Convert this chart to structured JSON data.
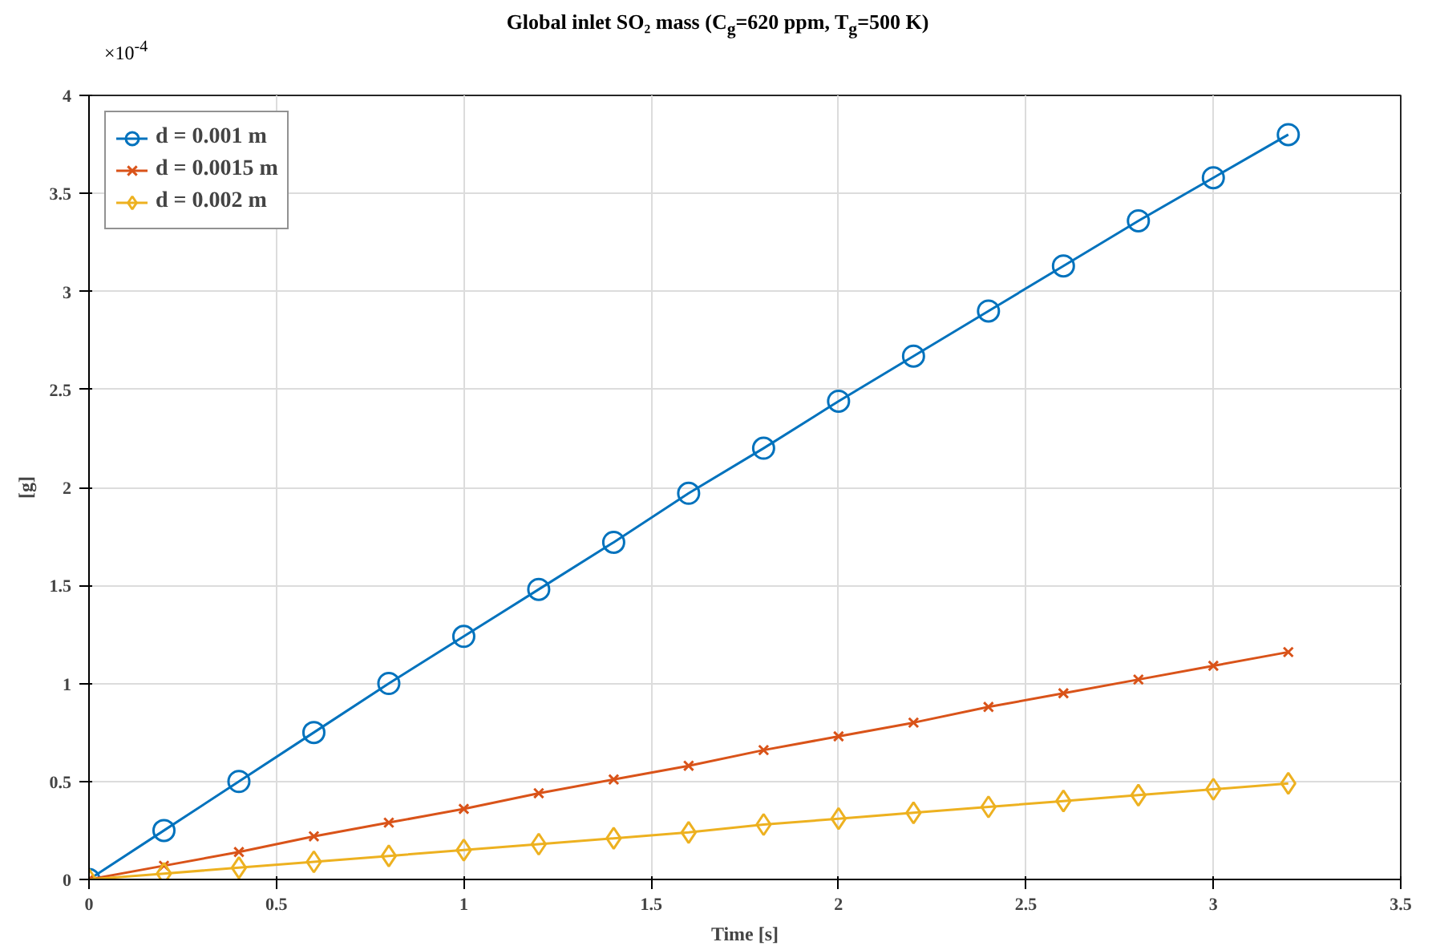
{
  "chart_data": {
    "type": "line",
    "title": "Global inlet SO₂ mass (C$_{g}$=620 ppm, T$_{g}$=500 K)",
    "xlabel": "Time [s]",
    "ylabel": "[g]",
    "annotations": [
      "×10$^{-4}$"
    ],
    "x": [
      0,
      0.2,
      0.4,
      0.6,
      0.8,
      1.0,
      1.2,
      1.4,
      1.6,
      1.8,
      2.0,
      2.2,
      2.4,
      2.6,
      2.8,
      3.0,
      3.2
    ],
    "series": [
      {
        "name": "d = 0.001 m",
        "color": "#0072bd",
        "marker": "circle",
        "values": [
          0,
          0.25,
          0.5,
          0.75,
          1.0,
          1.24,
          1.48,
          1.72,
          1.97,
          2.2,
          2.44,
          2.67,
          2.9,
          3.13,
          3.36,
          3.58,
          3.8
        ]
      },
      {
        "name": "d = 0.0015 m",
        "color": "#d95319",
        "marker": "cross",
        "values": [
          0,
          0.07,
          0.14,
          0.22,
          0.29,
          0.36,
          0.44,
          0.51,
          0.58,
          0.66,
          0.73,
          0.8,
          0.88,
          0.95,
          1.02,
          1.09,
          1.16
        ]
      },
      {
        "name": "d = 0.002 m",
        "color": "#edb120",
        "marker": "diamond",
        "values": [
          0,
          0.03,
          0.06,
          0.09,
          0.12,
          0.15,
          0.18,
          0.21,
          0.24,
          0.28,
          0.31,
          0.34,
          0.37,
          0.4,
          0.43,
          0.46,
          0.49
        ]
      }
    ],
    "xlim": [
      0,
      3.5
    ],
    "xticks": [
      0,
      0.5,
      1,
      1.5,
      2,
      2.5,
      3,
      3.5
    ],
    "ylim": [
      0,
      4
    ],
    "yticks": [
      0,
      0.5,
      1,
      1.5,
      2,
      2.5,
      3,
      3.5,
      4
    ],
    "grid": true,
    "legend": "top left",
    "line_style": "solid"
  }
}
